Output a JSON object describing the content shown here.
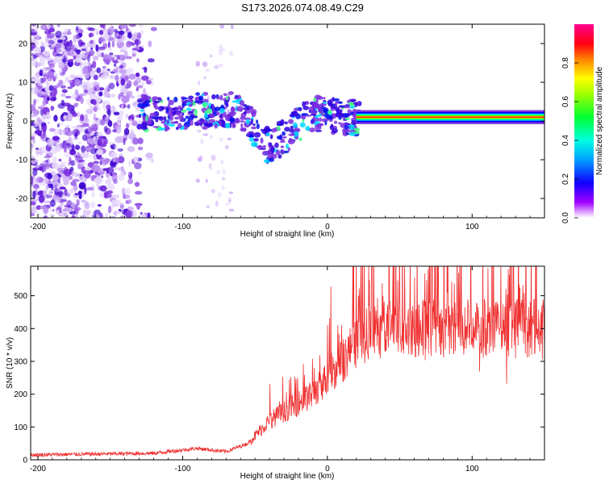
{
  "title": "S173.2026.074.08.49.C29",
  "colors": {
    "signal": "#ef2f2f",
    "axis": "#000000",
    "scatter": "#7b2fe0"
  },
  "chart_data": [
    {
      "type": "heatmap",
      "panel": "spectrogram",
      "xlabel": "Height of straight line (km)",
      "ylabel": "Frequency (Hz)",
      "xlim": [
        -205,
        150
      ],
      "ylim": [
        -25,
        25
      ],
      "xticks": [
        -200,
        -100,
        0,
        100
      ],
      "yticks": [
        -20,
        -10,
        0,
        10,
        20
      ],
      "colorbar": {
        "label": "Normalized spectral amplitude",
        "range": [
          0.0,
          1.0
        ],
        "ticks": [
          0.0,
          0.2,
          0.4,
          0.6,
          0.8
        ],
        "colormap": [
          "#ffffff",
          "#7b00ff",
          "#0000ff",
          "#00ffff",
          "#00ff00",
          "#ffff00",
          "#ff8000",
          "#ff0000",
          "#ff00a0"
        ]
      },
      "features": {
        "noise_region_x": [
          -205,
          -130
        ],
        "tone_track": {
          "x": [
            20,
            150
          ],
          "frequency": 1,
          "amplitude": 1.0
        },
        "dispersed_track_x": [
          -130,
          -60,
          -40,
          -10,
          10
        ],
        "dispersed_track_freq": [
          2,
          3,
          -7,
          2,
          1
        ]
      }
    },
    {
      "type": "line",
      "panel": "snr",
      "xlabel": "Height of straight line (km)",
      "ylabel": "SNR (10 * v/v)",
      "xlim": [
        -205,
        150
      ],
      "ylim": [
        0,
        590
      ],
      "xticks": [
        -200,
        -100,
        0,
        100
      ],
      "yticks": [
        0,
        100,
        200,
        300,
        400,
        500
      ],
      "envelope_x": [
        -205,
        -120,
        -90,
        -70,
        -55,
        -40,
        -25,
        -10,
        0,
        10,
        20,
        30,
        40,
        60,
        100,
        150
      ],
      "envelope_y": [
        15,
        20,
        35,
        25,
        50,
        120,
        160,
        200,
        250,
        300,
        360,
        390,
        410,
        405,
        400,
        400
      ],
      "series_name": "SNR"
    }
  ]
}
